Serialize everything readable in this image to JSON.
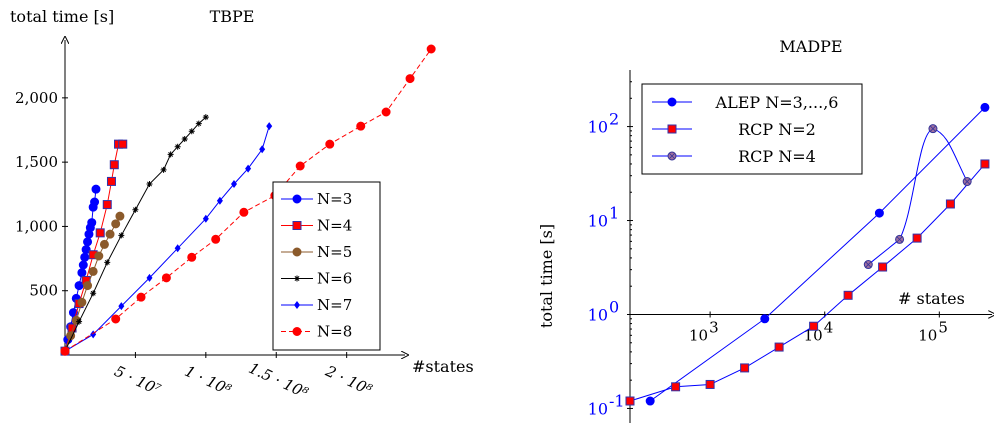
{
  "chart_data": [
    {
      "type": "line",
      "title": "TBPE",
      "xlabel": "#states",
      "ylabel": "total time [s]",
      "xlim": [
        0,
        240000000
      ],
      "ylim": [
        0,
        2450
      ],
      "x_ticks": [
        50000000,
        100000000,
        150000000,
        200000000
      ],
      "x_tick_labels": [
        "5 · 10⁷",
        "1 · 10⁸",
        "1.5 · 10⁸",
        "2 · 10⁸"
      ],
      "y_ticks": [
        500,
        1000,
        1500,
        2000
      ],
      "y_tick_labels": [
        "500",
        "1,000",
        "1,500",
        "2,000"
      ],
      "legend_position": "bottom-right",
      "series": [
        {
          "name": "N=3",
          "color": "#0000ff",
          "marker": "circle",
          "dash": "solid",
          "x": [
            0,
            2000000,
            4000000,
            6000000,
            8000000,
            10000000,
            12000000,
            13000000,
            14000000,
            15000000,
            16000000,
            17000000,
            18000000,
            19000000,
            20000000,
            21000000,
            22000000
          ],
          "y": [
            30,
            120,
            220,
            330,
            440,
            540,
            640,
            700,
            760,
            820,
            880,
            940,
            990,
            1030,
            1150,
            1190,
            1290
          ]
        },
        {
          "name": "N=4",
          "color": "#ff0000",
          "marker": "square",
          "dash": "solid",
          "x": [
            0,
            5000000,
            10000000,
            15000000,
            20000000,
            25000000,
            30000000,
            33000000,
            35000000,
            38000000,
            41000000
          ],
          "y": [
            30,
            210,
            400,
            580,
            780,
            950,
            1170,
            1350,
            1480,
            1640,
            1640
          ]
        },
        {
          "name": "N=5",
          "color": "#8b5a2b",
          "marker": "circle",
          "dash": "solid",
          "x": [
            0,
            4000000,
            8000000,
            12000000,
            16000000,
            20000000,
            24000000,
            28000000,
            32000000,
            36000000,
            39000000
          ],
          "y": [
            30,
            150,
            270,
            410,
            540,
            650,
            770,
            860,
            940,
            1020,
            1080
          ]
        },
        {
          "name": "N=6",
          "color": "#000000",
          "marker": "star",
          "dash": "solid",
          "x": [
            0,
            10000000,
            20000000,
            30000000,
            40000000,
            50000000,
            60000000,
            70000000,
            75000000,
            80000000,
            85000000,
            90000000,
            95000000,
            100000000
          ],
          "y": [
            30,
            260,
            480,
            720,
            930,
            1130,
            1330,
            1440,
            1560,
            1620,
            1680,
            1740,
            1800,
            1850
          ]
        },
        {
          "name": "N=7",
          "color": "#0000ff",
          "marker": "diamond",
          "dash": "solid",
          "x": [
            0,
            20000000,
            40000000,
            60000000,
            80000000,
            100000000,
            110000000,
            120000000,
            130000000,
            140000000,
            145000000
          ],
          "y": [
            30,
            160,
            380,
            600,
            830,
            1060,
            1200,
            1330,
            1450,
            1600,
            1780
          ]
        },
        {
          "name": "N=8",
          "color": "#ff0000",
          "marker": "circle",
          "dash": "dashed",
          "x": [
            0,
            36000000,
            54000000,
            72000000,
            90000000,
            107000000,
            127000000,
            149000000,
            167000000,
            188000000,
            210000000,
            228000000,
            245000000
          ],
          "y": [
            30,
            280,
            450,
            600,
            760,
            900,
            1110,
            1240,
            1470,
            1640,
            1780,
            1890,
            2150
          ]
        }
      ],
      "extra_point": {
        "series": "N=8",
        "x": 260000000,
        "y": 2380
      }
    },
    {
      "type": "line",
      "title": "MADPE",
      "xlabel": "# states",
      "ylabel": "total time [s]",
      "xscale": "log",
      "yscale": "log",
      "xlim": [
        200,
        300000
      ],
      "ylim": [
        0.07,
        400
      ],
      "x_ticks": [
        1000,
        10000,
        100000
      ],
      "y_ticks": [
        0.1,
        1,
        10,
        100
      ],
      "legend_position": "top-left",
      "series": [
        {
          "name": "ALEP N=3,...,6",
          "color": "#0000ff",
          "marker": "circle",
          "x": [
            300,
            3000,
            30000,
            250000
          ],
          "y": [
            0.12,
            0.9,
            12,
            160
          ]
        },
        {
          "name": "RCP N=2",
          "color": "#ff0000",
          "marker": "square",
          "x": [
            200,
            500,
            1000,
            2000,
            4000,
            8000,
            16000,
            32000,
            64000,
            125000,
            250000
          ],
          "y": [
            0.12,
            0.17,
            0.18,
            0.27,
            0.45,
            0.75,
            1.6,
            3.2,
            6.5,
            15,
            40
          ]
        },
        {
          "name": "RCP N=4",
          "color": "#6a5acd",
          "marker": "circle-x",
          "x": [
            24000,
            45000,
            88000,
            175000
          ],
          "y": [
            3.4,
            6.3,
            95,
            26
          ]
        }
      ]
    }
  ]
}
